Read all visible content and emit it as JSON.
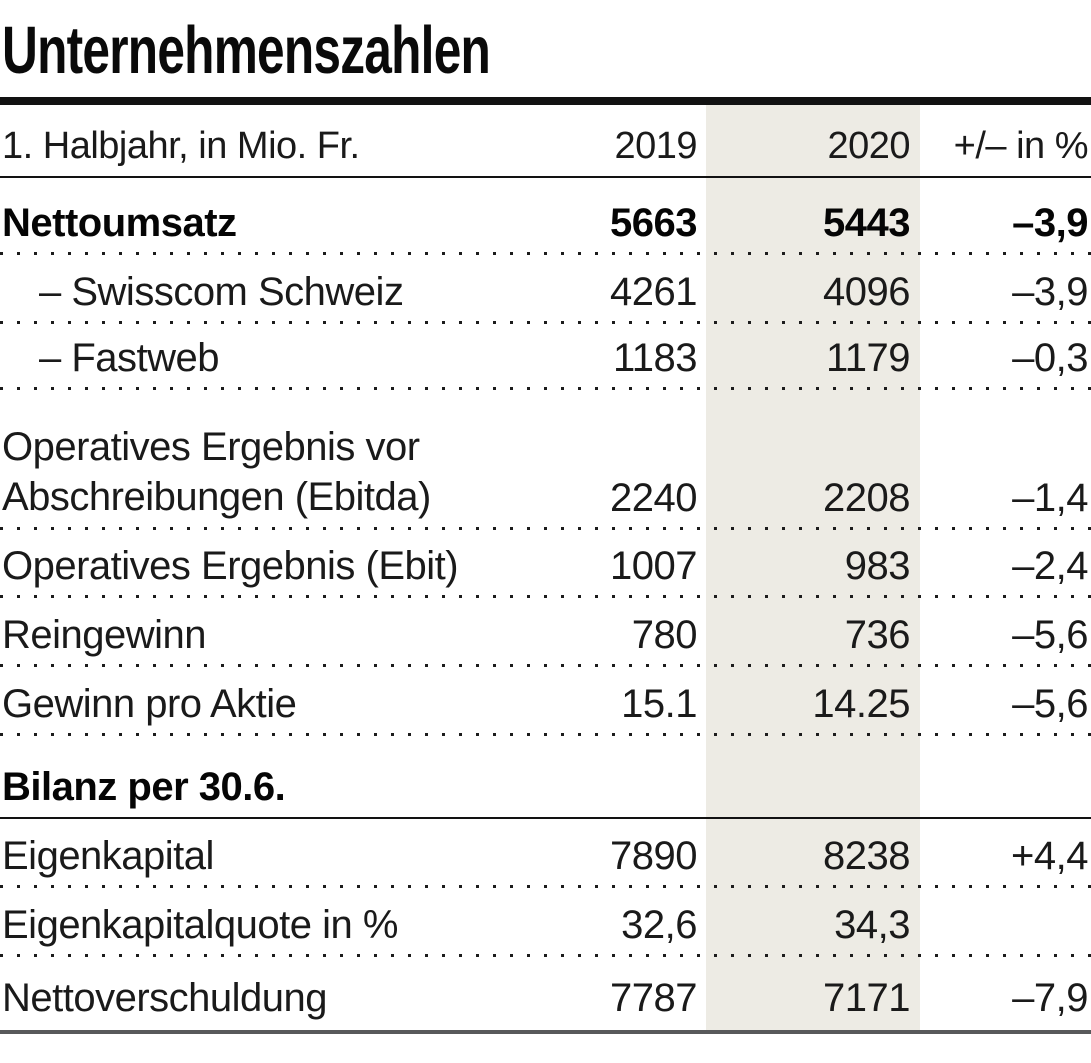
{
  "title": "Unternehmenszahlen",
  "columns": {
    "label": "1. Halbjahr, in Mio. Fr.",
    "y2019": "2019",
    "y2020": "2020",
    "change": "+/– in %"
  },
  "rows": [
    {
      "label": "Nettoumsatz",
      "v2019": "5663",
      "v2020": "5443",
      "change": "–3,9"
    },
    {
      "label": "– Swisscom Schweiz",
      "v2019": "4261",
      "v2020": "4096",
      "change": "–3,9"
    },
    {
      "label": "– Fastweb",
      "v2019": "1183",
      "v2020": "1179",
      "change": "–0,3"
    },
    {
      "label1": "Operatives Ergebnis vor",
      "label2": "Abschreibungen (Ebitda)",
      "v2019": "2240",
      "v2020": "2208",
      "change": "–1,4"
    },
    {
      "label": "Operatives Ergebnis (Ebit)",
      "v2019": "1007",
      "v2020": "983",
      "change": "–2,4"
    },
    {
      "label": "Reingewinn",
      "v2019": "780",
      "v2020": "736",
      "change": "–5,6"
    },
    {
      "label": "Gewinn pro Aktie",
      "v2019": "15.1",
      "v2020": "14.25",
      "change": "–5,6"
    },
    {
      "label": "Bilanz per 30.6."
    },
    {
      "label": "Eigenkapital",
      "v2019": "7890",
      "v2020": "8238",
      "change": "+4,4"
    },
    {
      "label": "Eigenkapitalquote in %",
      "v2019": "32,6",
      "v2020": "34,3"
    },
    {
      "label": "Nettoverschuldung",
      "v2019": "7787",
      "v2020": "7171",
      "change": "–7,9"
    }
  ],
  "colors": {
    "highlight_band": "#edebe4",
    "rule_black": "#121212",
    "rule_bottom_gray": "#58595b",
    "text": "#1a1a1a"
  },
  "chart_data": {
    "type": "table",
    "title": "Unternehmenszahlen",
    "subtitle": "1. Halbjahr, in Mio. Fr.",
    "columns": [
      "1. Halbjahr, in Mio. Fr.",
      "2019",
      "2020",
      "+/– in %"
    ],
    "highlighted_column": "2020",
    "rows": [
      [
        "Nettoumsatz",
        5663,
        5443,
        -3.9
      ],
      [
        "– Swisscom Schweiz",
        4261,
        4096,
        -3.9
      ],
      [
        "– Fastweb",
        1183,
        1179,
        -0.3
      ],
      [
        "Operatives Ergebnis vor Abschreibungen (Ebitda)",
        2240,
        2208,
        -1.4
      ],
      [
        "Operatives Ergebnis (Ebit)",
        1007,
        983,
        -2.4
      ],
      [
        "Reingewinn",
        780,
        736,
        -5.6
      ],
      [
        "Gewinn pro Aktie",
        15.1,
        14.25,
        -5.6
      ],
      [
        "Bilanz per 30.6.",
        null,
        null,
        null
      ],
      [
        "Eigenkapital",
        7890,
        8238,
        4.4
      ],
      [
        "Eigenkapitalquote in %",
        32.6,
        34.3,
        null
      ],
      [
        "Nettoverschuldung",
        7787,
        7171,
        -7.9
      ]
    ]
  }
}
